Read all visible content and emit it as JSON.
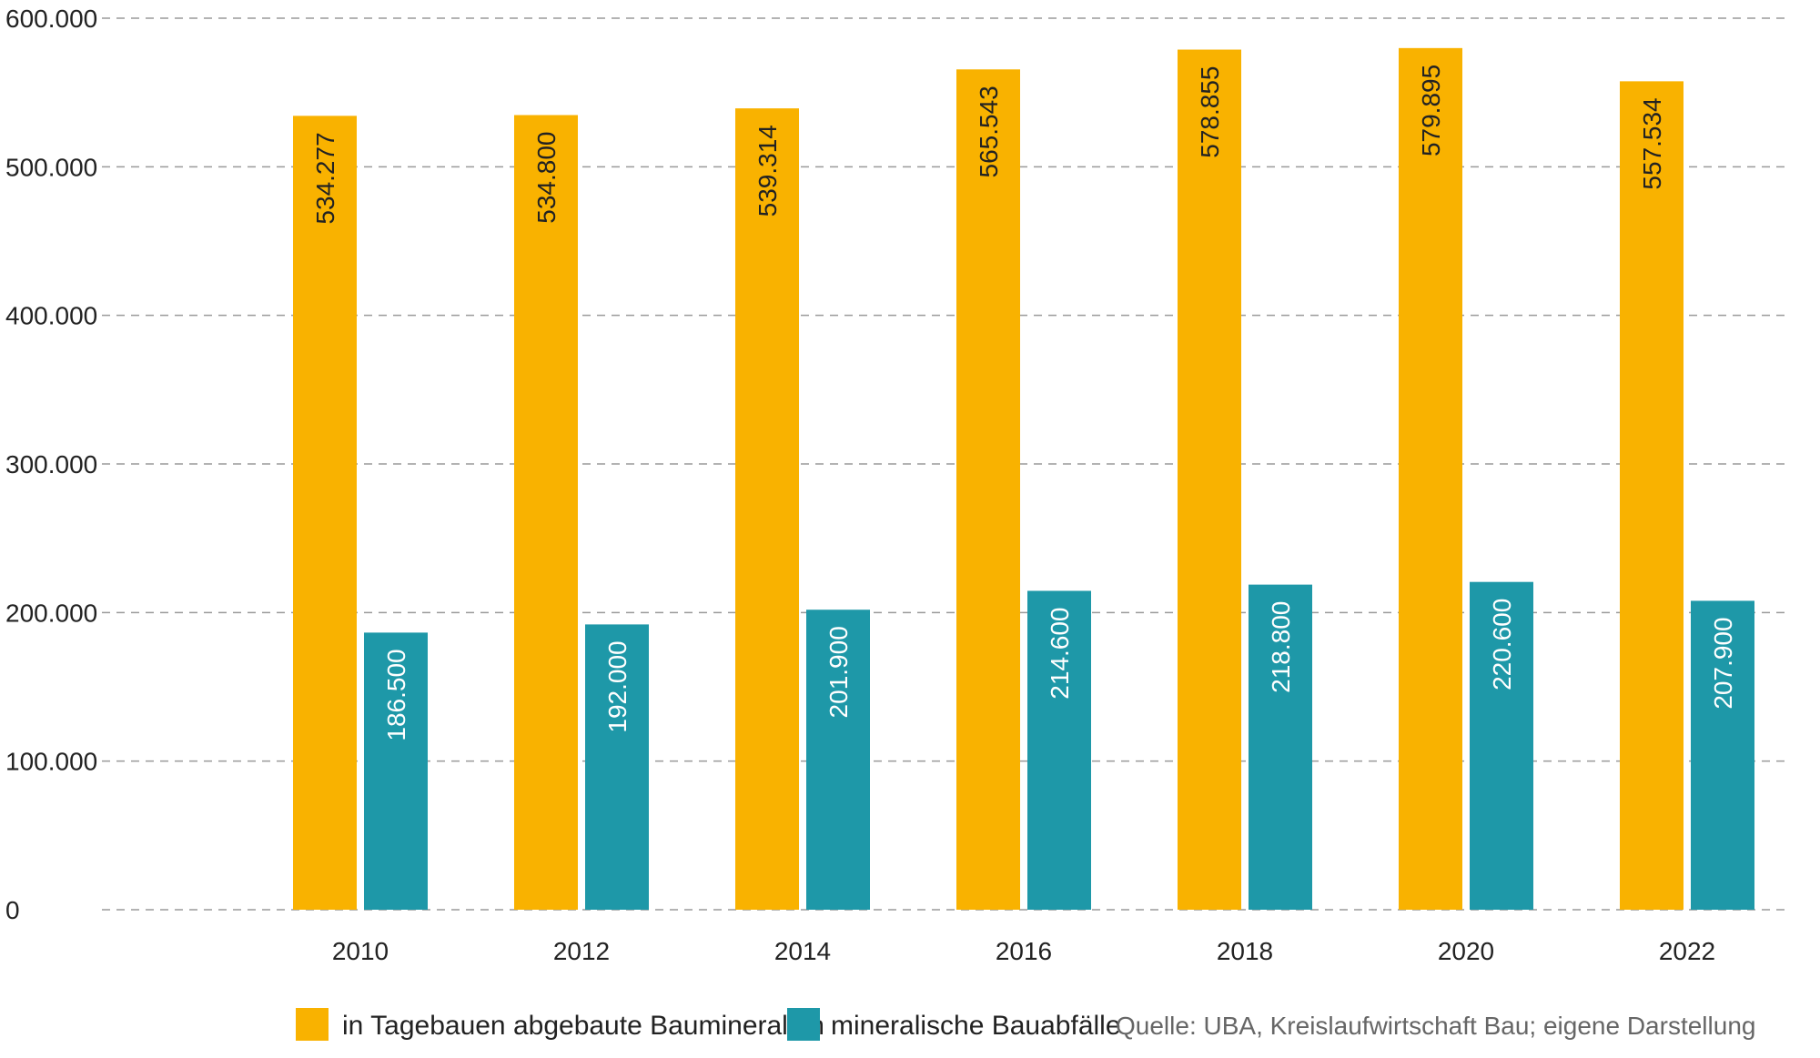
{
  "chart_data": {
    "type": "bar",
    "categories": [
      "2010",
      "2012",
      "2014",
      "2016",
      "2018",
      "2020",
      "2022"
    ],
    "series": [
      {
        "name": "in Tagebauen abgebaute Baumineralien",
        "values": [
          534277,
          534800,
          539314,
          565543,
          578855,
          579895,
          557534
        ],
        "labels": [
          "534.277",
          "534.800",
          "539.314",
          "565.543",
          "578.855",
          "579.895",
          "557.534"
        ],
        "color": "#F9B200"
      },
      {
        "name": "mineralische Bauabfälle",
        "values": [
          186500,
          192000,
          201900,
          214600,
          218800,
          220600,
          207900
        ],
        "labels": [
          "186.500",
          "192.000",
          "201.900",
          "214.600",
          "218.800",
          "220.600",
          "207.900"
        ],
        "color": "#1E98A8"
      }
    ],
    "ylim": [
      0,
      600000
    ],
    "yticks": [
      0,
      100000,
      200000,
      300000,
      400000,
      500000,
      600000
    ],
    "ytick_labels": [
      "0",
      "100.000",
      "200.000",
      "300.000",
      "400.000",
      "500.000",
      "600.000"
    ],
    "grid": true,
    "legend_position": "bottom",
    "source": "Quelle: UBA, Kreislaufwirtschaft Bau; eigene Darstellung"
  }
}
